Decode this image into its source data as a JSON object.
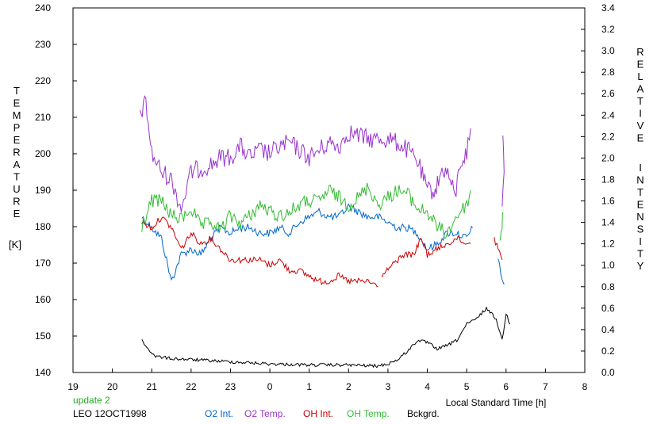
{
  "chart_data": {
    "type": "line",
    "left_axis": {
      "label_letters": [
        "T",
        "E",
        "M",
        "P",
        "E",
        "R",
        "A",
        "T",
        "U",
        "R",
        "E"
      ],
      "unit": "[K]",
      "range": [
        140,
        240
      ],
      "ticks": [
        "140",
        "150",
        "160",
        "170",
        "180",
        "190",
        "200",
        "210",
        "220",
        "230",
        "240"
      ]
    },
    "right_axis": {
      "label_letters_1": [
        "R",
        "E",
        "L",
        "A",
        "T",
        "I",
        "V",
        "E"
      ],
      "label_letters_2": [
        "I",
        "N",
        "T",
        "E",
        "N",
        "S",
        "I",
        "T",
        "Y"
      ],
      "range": [
        0.0,
        3.4
      ],
      "ticks": [
        "0.0",
        "0.2",
        "0.4",
        "0.6",
        "0.8",
        "1.0",
        "1.2",
        "1.4",
        "1.6",
        "1.8",
        "2.0",
        "2.2",
        "2.4",
        "2.6",
        "2.8",
        "3.0",
        "3.2",
        "3.4"
      ]
    },
    "x_axis": {
      "label": "Local Standard Time [h]",
      "ticks": [
        "19",
        "20",
        "21",
        "22",
        "23",
        "0",
        "1",
        "2",
        "3",
        "4",
        "5",
        "6",
        "7",
        "8"
      ]
    },
    "update_text": "update 2",
    "site_date": "LEO 12OCT1998",
    "colors": {
      "o2_int": "#0066cc",
      "o2_temp": "#9933cc",
      "oh_int": "#cc0000",
      "oh_temp": "#33bb33",
      "bckgrd": "#000000",
      "update": "#22aa22"
    },
    "series": [
      {
        "name": "O2 Int.",
        "axis": "right",
        "points": [
          [
            20.75,
            1.45
          ],
          [
            21.0,
            1.35
          ],
          [
            21.25,
            1.25
          ],
          [
            21.5,
            0.85
          ],
          [
            21.75,
            1.1
          ],
          [
            22.0,
            1.15
          ],
          [
            22.25,
            1.1
          ],
          [
            22.5,
            1.25
          ],
          [
            22.75,
            1.35
          ],
          [
            23.0,
            1.3
          ],
          [
            23.25,
            1.35
          ],
          [
            23.5,
            1.35
          ],
          [
            23.75,
            1.3
          ],
          [
            24.0,
            1.3
          ],
          [
            24.25,
            1.35
          ],
          [
            24.5,
            1.3
          ],
          [
            24.75,
            1.4
          ],
          [
            25.0,
            1.45
          ],
          [
            25.25,
            1.5
          ],
          [
            25.5,
            1.45
          ],
          [
            25.75,
            1.45
          ],
          [
            26.0,
            1.55
          ],
          [
            26.25,
            1.5
          ],
          [
            26.5,
            1.45
          ],
          [
            26.75,
            1.45
          ],
          [
            27.0,
            1.4
          ],
          [
            27.25,
            1.35
          ],
          [
            27.5,
            1.35
          ],
          [
            27.75,
            1.3
          ],
          [
            28.0,
            1.15
          ],
          [
            28.25,
            1.2
          ],
          [
            28.5,
            1.3
          ],
          [
            28.75,
            1.3
          ],
          [
            29.0,
            1.25
          ],
          [
            29.15,
            1.35
          ]
        ]
      },
      {
        "name": "O2 Temp.",
        "axis": "left",
        "points": [
          [
            20.7,
            211
          ],
          [
            20.85,
            214
          ],
          [
            21.0,
            200
          ],
          [
            21.25,
            195
          ],
          [
            21.5,
            193
          ],
          [
            21.75,
            185
          ],
          [
            22.0,
            195
          ],
          [
            22.25,
            196
          ],
          [
            22.5,
            197
          ],
          [
            22.75,
            199
          ],
          [
            23.0,
            199
          ],
          [
            23.25,
            202
          ],
          [
            23.5,
            199
          ],
          [
            23.75,
            201
          ],
          [
            24.0,
            200
          ],
          [
            24.25,
            202
          ],
          [
            24.5,
            203
          ],
          [
            24.75,
            201
          ],
          [
            25.0,
            199
          ],
          [
            25.25,
            201
          ],
          [
            25.5,
            203
          ],
          [
            25.75,
            202
          ],
          [
            26.0,
            206
          ],
          [
            26.25,
            205
          ],
          [
            26.5,
            204
          ],
          [
            26.75,
            204
          ],
          [
            27.0,
            204
          ],
          [
            27.25,
            203
          ],
          [
            27.5,
            201
          ],
          [
            27.75,
            198
          ],
          [
            28.0,
            190
          ],
          [
            28.2,
            190
          ],
          [
            28.4,
            196
          ],
          [
            28.55,
            194
          ],
          [
            28.7,
            188
          ],
          [
            28.85,
            198
          ],
          [
            29.0,
            200
          ],
          [
            29.1,
            207
          ]
        ]
      },
      {
        "name": "OH Int.",
        "axis": "right",
        "points": [
          [
            20.75,
            1.4
          ],
          [
            21.0,
            1.35
          ],
          [
            21.25,
            1.45
          ],
          [
            21.5,
            1.35
          ],
          [
            21.75,
            1.15
          ],
          [
            22.0,
            1.3
          ],
          [
            22.25,
            1.2
          ],
          [
            22.5,
            1.25
          ],
          [
            22.75,
            1.15
          ],
          [
            23.0,
            1.05
          ],
          [
            23.25,
            1.05
          ],
          [
            23.5,
            1.05
          ],
          [
            23.75,
            1.05
          ],
          [
            24.0,
            1.0
          ],
          [
            24.25,
            1.05
          ],
          [
            24.5,
            0.95
          ],
          [
            24.75,
            0.95
          ],
          [
            25.0,
            0.9
          ],
          [
            25.25,
            0.85
          ],
          [
            25.5,
            0.85
          ],
          [
            25.75,
            0.9
          ],
          [
            26.0,
            0.85
          ],
          [
            26.25,
            0.85
          ],
          [
            26.5,
            0.85
          ],
          [
            26.75,
            0.8
          ]
        ]
      },
      {
        "name": "OH Temp.",
        "axis": "left",
        "points": [
          [
            20.75,
            180
          ],
          [
            21.0,
            187
          ],
          [
            21.25,
            187
          ],
          [
            21.5,
            183
          ],
          [
            21.75,
            182
          ],
          [
            22.0,
            185
          ],
          [
            22.25,
            180
          ],
          [
            22.5,
            181
          ],
          [
            22.75,
            179
          ],
          [
            23.0,
            183
          ],
          [
            23.25,
            181
          ],
          [
            23.5,
            183
          ],
          [
            23.75,
            186
          ],
          [
            24.0,
            184
          ],
          [
            24.25,
            183
          ],
          [
            24.5,
            184
          ],
          [
            24.75,
            186
          ],
          [
            25.0,
            187
          ],
          [
            25.25,
            187
          ],
          [
            25.5,
            190
          ],
          [
            25.75,
            188
          ],
          [
            26.0,
            186
          ],
          [
            26.25,
            188
          ],
          [
            26.5,
            191
          ],
          [
            26.75,
            186
          ],
          [
            27.0,
            188
          ],
          [
            27.25,
            190
          ],
          [
            27.5,
            189
          ],
          [
            27.75,
            185
          ],
          [
            28.0,
            184
          ],
          [
            28.25,
            180
          ],
          [
            28.5,
            178
          ],
          [
            28.75,
            183
          ],
          [
            29.0,
            186
          ],
          [
            29.1,
            190
          ]
        ]
      },
      {
        "name": "Bckgrd.",
        "axis": "right",
        "points": [
          [
            20.75,
            0.3
          ],
          [
            20.9,
            0.22
          ],
          [
            21.1,
            0.15
          ],
          [
            21.5,
            0.13
          ],
          [
            22.0,
            0.12
          ],
          [
            23.0,
            0.1
          ],
          [
            24.0,
            0.08
          ],
          [
            25.0,
            0.07
          ],
          [
            26.0,
            0.07
          ],
          [
            26.75,
            0.06
          ],
          [
            27.0,
            0.08
          ],
          [
            27.25,
            0.12
          ],
          [
            27.5,
            0.2
          ],
          [
            27.75,
            0.3
          ],
          [
            28.0,
            0.28
          ],
          [
            28.25,
            0.22
          ],
          [
            28.5,
            0.25
          ],
          [
            28.75,
            0.3
          ],
          [
            29.0,
            0.45
          ],
          [
            29.25,
            0.5
          ],
          [
            29.5,
            0.6
          ],
          [
            29.75,
            0.5
          ],
          [
            29.9,
            0.3
          ],
          [
            30.0,
            0.55
          ],
          [
            30.1,
            0.45
          ]
        ]
      }
    ],
    "segments_extra": [
      {
        "name": "O2 Int.",
        "axis": "right",
        "points": [
          [
            29.8,
            1.05
          ],
          [
            29.9,
            0.9
          ],
          [
            29.95,
            0.82
          ]
        ]
      },
      {
        "name": "O2 Temp.",
        "axis": "left",
        "points": [
          [
            29.9,
            188
          ],
          [
            29.95,
            196
          ],
          [
            29.92,
            205
          ]
        ]
      },
      {
        "name": "OH Int.",
        "axis": "right",
        "points": [
          [
            29.7,
            1.25
          ],
          [
            29.8,
            1.15
          ],
          [
            29.9,
            1.05
          ]
        ]
      },
      {
        "name": "OH Temp.",
        "axis": "left",
        "points": [
          [
            29.85,
            176
          ],
          [
            29.9,
            180
          ],
          [
            29.92,
            184
          ]
        ]
      },
      {
        "name": "OH Int.",
        "axis": "right",
        "points": [
          [
            26.85,
            0.9
          ],
          [
            27.1,
            1.0
          ],
          [
            27.4,
            1.1
          ],
          [
            27.65,
            1.1
          ],
          [
            27.85,
            1.25
          ],
          [
            28.0,
            1.1
          ],
          [
            28.25,
            1.15
          ],
          [
            28.5,
            1.2
          ],
          [
            28.75,
            1.25
          ],
          [
            29.0,
            1.2
          ],
          [
            29.1,
            1.2
          ]
        ]
      }
    ]
  }
}
